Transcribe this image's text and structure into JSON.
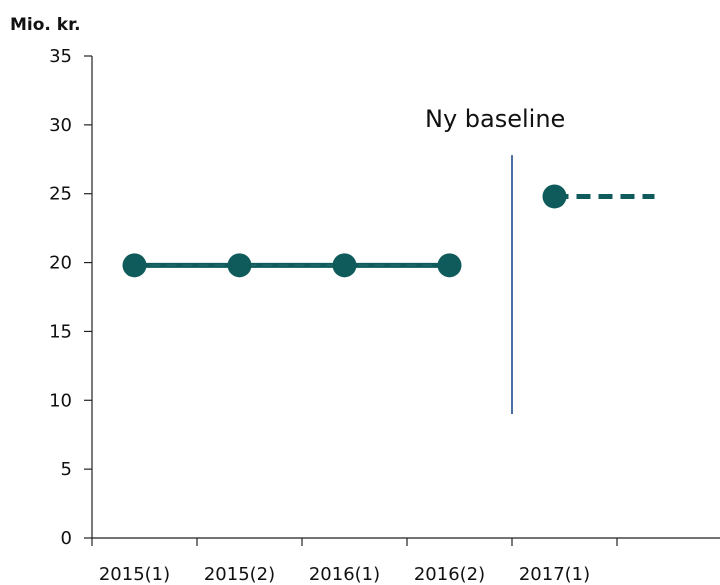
{
  "chart_data": {
    "type": "line",
    "ylabel": "Mio. kr.",
    "categories": [
      "2015(1)",
      "2015(2)",
      "2016(1)",
      "2016(2)",
      "2017(1)"
    ],
    "ylim": [
      0,
      35
    ],
    "yticks": [
      0,
      5,
      10,
      15,
      20,
      25,
      30,
      35
    ],
    "series": [
      {
        "values": [
          19.8,
          19.8,
          19.8,
          19.8,
          null
        ],
        "color": "#0f5b5c",
        "style": "solid"
      },
      {
        "values": [
          null,
          null,
          null,
          null,
          24.8
        ],
        "color": "#0f5b5c",
        "style": "dashed-extension"
      }
    ],
    "annotation": {
      "text": "Ny baseline"
    },
    "baseline_marker": {
      "between_categories": [
        "2016(2)",
        "2017(1)"
      ],
      "y_from": 9,
      "y_to": 27.8,
      "color": "#4a6fa5"
    },
    "grid": false
  }
}
